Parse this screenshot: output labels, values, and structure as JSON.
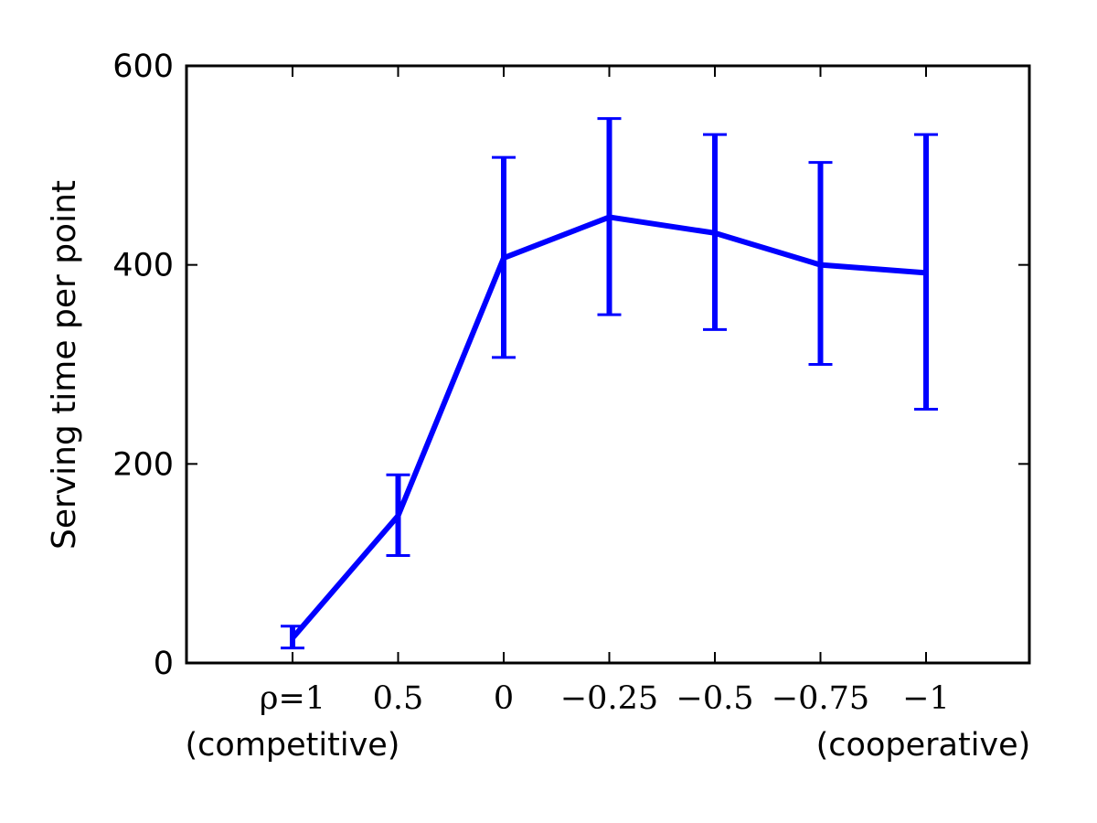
{
  "chart_data": {
    "type": "line",
    "categories": [
      "ρ=1",
      "0.5",
      "0",
      "−0.25",
      "−0.5",
      "−0.75",
      "−1"
    ],
    "category_notes": [
      {
        "category_index": 0,
        "text": "(competitive)"
      },
      {
        "category_index": 6,
        "text": "(cooperative)"
      }
    ],
    "series": [
      {
        "values": [
          25,
          148,
          407,
          448,
          432,
          400,
          392
        ],
        "error_low": [
          15,
          108,
          307,
          350,
          335,
          300,
          255
        ],
        "error_high": [
          37,
          189,
          508,
          547,
          531,
          503,
          531
        ],
        "color": "#0000ff"
      }
    ],
    "title": "",
    "xlabel": "",
    "ylabel": "Serving time per point",
    "ylim": [
      0,
      600
    ],
    "yticks": [
      0,
      200,
      400,
      600
    ],
    "ytick_labels": [
      "0",
      "200",
      "400",
      "600"
    ],
    "grid": false,
    "legend": "none"
  }
}
